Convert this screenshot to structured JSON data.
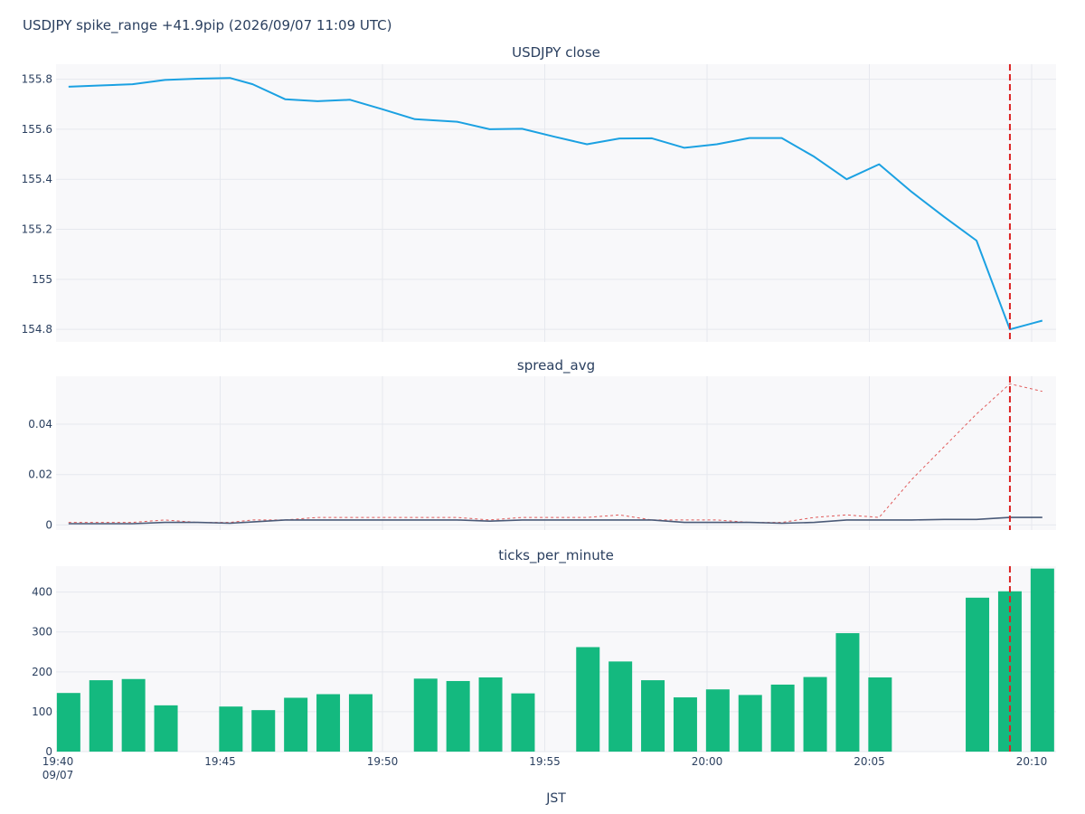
{
  "title": "USDJPY spike_range +41.9pip (2026/09/07 11:09 UTC)",
  "x_axis_title": "JST",
  "x_ticks": [
    {
      "m": 0,
      "label": "19:40",
      "sub": "09/07"
    },
    {
      "m": 5,
      "label": "19:45"
    },
    {
      "m": 10,
      "label": "19:50"
    },
    {
      "m": 15,
      "label": "19:55"
    },
    {
      "m": 20,
      "label": "20:00"
    },
    {
      "m": 25,
      "label": "20:05"
    },
    {
      "m": 30,
      "label": "20:10"
    }
  ],
  "event_marker_minute": 29.33,
  "colors": {
    "price": "#1ba1e2",
    "spread_max": "#e05a5a",
    "spread_avg": "#4a5a78",
    "ticks": "#14b97f",
    "event": "#dd2222",
    "plot_bg": "#f8f8fa",
    "grid": "#e6e8ee"
  },
  "chart_data": [
    {
      "type": "line",
      "title": "USDJPY close",
      "ylim": [
        154.75,
        155.86
      ],
      "y_ticks": [
        154.8,
        155,
        155.2,
        155.4,
        155.6,
        155.8
      ],
      "y_tick_labels": [
        "154.8",
        "155",
        "155.2",
        "155.4",
        "155.6",
        "155.8"
      ],
      "series": [
        {
          "x": [
            0.33,
            1.3,
            2.3,
            3.3,
            4.3,
            5.3,
            6.0,
            7.0,
            8.0,
            9.0,
            10.0,
            11.0,
            12.3,
            13.3,
            14.3,
            15.3,
            16.3,
            17.3,
            18.3,
            19.3,
            20.3,
            21.3,
            22.3,
            23.3,
            24.3,
            25.3,
            26.3,
            27.3,
            28.3,
            29.33,
            30.33
          ],
          "y": [
            155.77,
            155.775,
            155.78,
            155.797,
            155.802,
            155.805,
            155.78,
            155.72,
            155.712,
            155.718,
            155.68,
            155.64,
            155.63,
            155.6,
            155.602,
            155.57,
            155.54,
            155.563,
            155.564,
            155.526,
            155.54,
            155.565,
            155.565,
            155.49,
            155.4,
            155.46,
            155.35,
            155.25,
            155.155,
            154.8,
            154.835
          ]
        }
      ]
    },
    {
      "type": "line",
      "title": "spread_avg",
      "ylim": [
        -0.002,
        0.059
      ],
      "y_ticks": [
        0,
        0.02,
        0.04
      ],
      "y_tick_labels": [
        "0",
        "0.02",
        "0.04"
      ],
      "series": [
        {
          "x": [
            0.33,
            1.3,
            2.3,
            3.3,
            4.3,
            5.3,
            6.0,
            7.0,
            8.0,
            9.0,
            10.0,
            11.0,
            12.3,
            13.3,
            14.3,
            15.3,
            16.3,
            17.3,
            18.3,
            19.3,
            20.3,
            21.3,
            22.3,
            23.3,
            24.3,
            25.3,
            26.3,
            27.3,
            28.3,
            29.33,
            30.33
          ],
          "y": [
            0.001,
            0.001,
            0.001,
            0.002,
            0.001,
            0.001,
            0.002,
            0.002,
            0.003,
            0.003,
            0.003,
            0.003,
            0.003,
            0.002,
            0.003,
            0.003,
            0.003,
            0.004,
            0.002,
            0.002,
            0.002,
            0.001,
            0.001,
            0.003,
            0.004,
            0.003,
            0.018,
            0.031,
            0.044,
            0.056,
            0.053
          ],
          "dash": true,
          "color_key": "spread_max"
        },
        {
          "x": [
            0.33,
            1.3,
            2.3,
            3.3,
            4.3,
            5.3,
            6.0,
            7.0,
            8.0,
            9.0,
            10.0,
            11.0,
            12.3,
            13.3,
            14.3,
            15.3,
            16.3,
            17.3,
            18.3,
            19.3,
            20.3,
            21.3,
            22.3,
            23.3,
            24.3,
            25.3,
            26.3,
            27.3,
            28.3,
            29.33,
            30.33
          ],
          "y": [
            0.0005,
            0.0005,
            0.0005,
            0.001,
            0.001,
            0.0007,
            0.0012,
            0.002,
            0.002,
            0.002,
            0.002,
            0.002,
            0.002,
            0.0015,
            0.002,
            0.002,
            0.002,
            0.002,
            0.002,
            0.001,
            0.001,
            0.001,
            0.0007,
            0.001,
            0.002,
            0.002,
            0.002,
            0.0022,
            0.0022,
            0.003,
            0.003
          ],
          "dash": false,
          "color_key": "spread_avg"
        }
      ]
    },
    {
      "type": "bar",
      "title": "ticks_per_minute",
      "ylim": [
        0,
        465
      ],
      "y_ticks": [
        0,
        100,
        200,
        300,
        400
      ],
      "y_tick_labels": [
        "0",
        "100",
        "200",
        "300",
        "400"
      ],
      "x": [
        0.33,
        1.33,
        2.33,
        3.33,
        5.33,
        6.33,
        7.33,
        8.33,
        9.33,
        11.33,
        12.33,
        13.33,
        14.33,
        16.33,
        17.33,
        18.33,
        19.33,
        20.33,
        21.33,
        22.33,
        23.33,
        24.33,
        25.33,
        28.33,
        29.33,
        30.33
      ],
      "values": [
        147,
        179,
        182,
        116,
        113,
        104,
        135,
        144,
        144,
        183,
        177,
        186,
        146,
        262,
        226,
        179,
        136,
        156,
        142,
        168,
        187,
        297,
        186,
        386,
        402,
        459
      ]
    }
  ]
}
